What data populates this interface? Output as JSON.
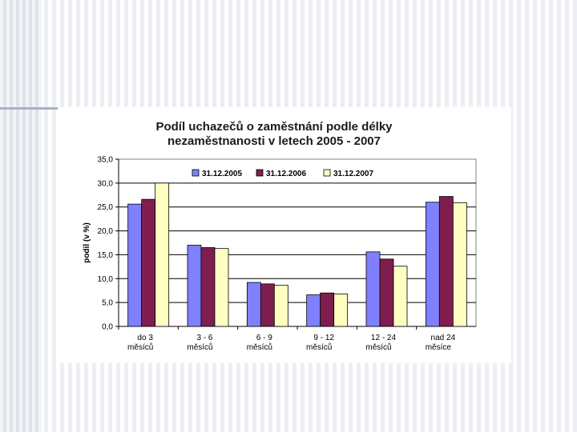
{
  "chart_data": {
    "type": "bar",
    "title_lines": [
      "Podíl uchazečů o zaměstnání podle délky",
      "nezaměstnanosti v letech 2005 - 2007"
    ],
    "xlabel": "",
    "ylabel": "podíl (v %)",
    "ylim": [
      0,
      35
    ],
    "yticks": [
      "0,0",
      "5,0",
      "10,0",
      "15,0",
      "20,0",
      "25,0",
      "30,0",
      "35,0"
    ],
    "categories": [
      [
        "do 3",
        "měsíců"
      ],
      [
        "3 - 6",
        "měsíců"
      ],
      [
        "6 - 9",
        "měsíců"
      ],
      [
        "9 - 12",
        "měsíců"
      ],
      [
        "12 - 24",
        "měsíců"
      ],
      [
        "nad 24",
        "měsíce"
      ]
    ],
    "series": [
      {
        "name": "31.12.2005",
        "color": "#8080ff",
        "values": [
          25.6,
          17.0,
          9.2,
          6.6,
          15.6,
          26.0
        ]
      },
      {
        "name": "31.12.2006",
        "color": "#7f1e4e",
        "values": [
          26.6,
          16.5,
          8.9,
          7.0,
          14.1,
          27.2
        ]
      },
      {
        "name": "31.12.2007",
        "color": "#ffffc2",
        "values": [
          30.0,
          16.3,
          8.6,
          6.8,
          12.6,
          25.9
        ]
      }
    ],
    "grid": true,
    "legend_position": "top"
  }
}
